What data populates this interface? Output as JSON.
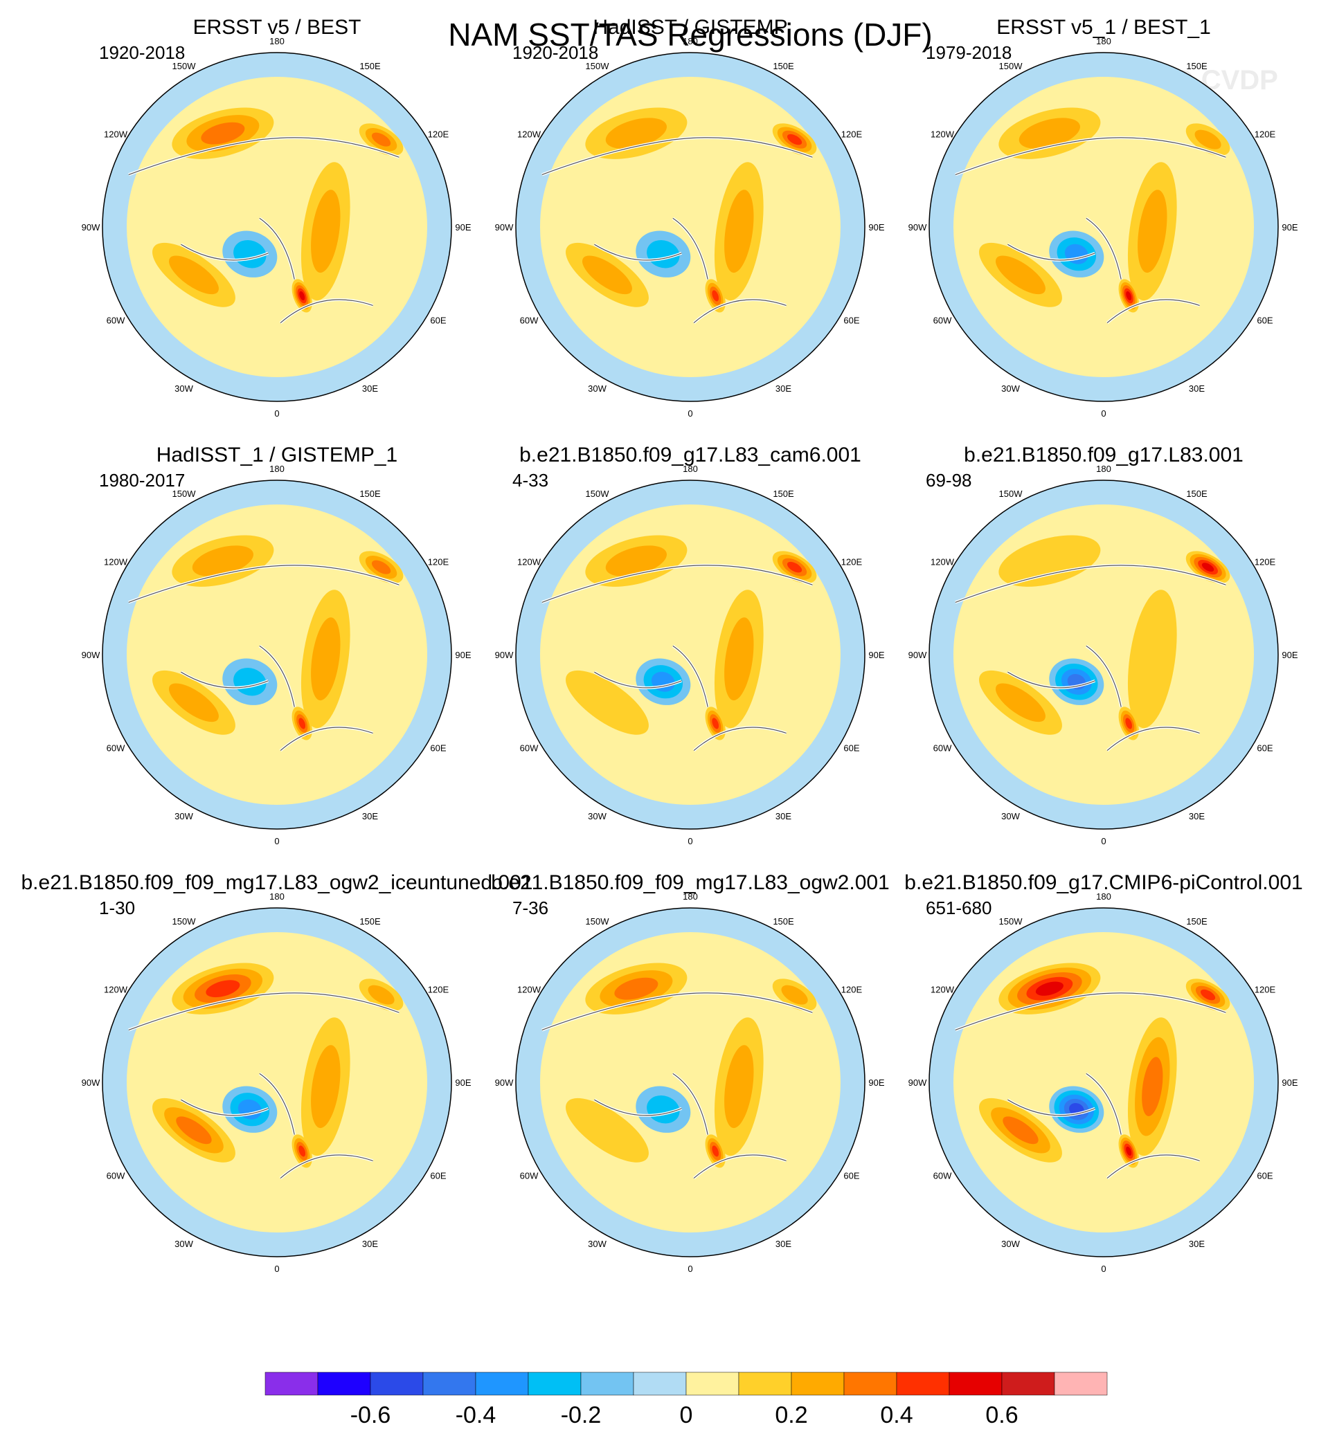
{
  "chart_data": {
    "type": "map",
    "title": "NAM SST/TAS Regressions (DJF)",
    "watermark": "© CVDP",
    "projection": "north polar stereographic",
    "longitude_labels": [
      "180",
      "150E",
      "120E",
      "90E",
      "60E",
      "30E",
      "0",
      "30W",
      "60W",
      "90W",
      "120W",
      "150W"
    ],
    "panels": [
      {
        "title": "ERSST v5 / BEST",
        "years": "1920-2018",
        "pacific_max": 0.33,
        "siberia_max": 0.38,
        "eurasia_max": 0.22,
        "atlantic_max": 0.2,
        "canada_min": -0.25,
        "scandinavia_max": 0.55
      },
      {
        "title": "HadISST / GISTEMP",
        "years": "1920-2018",
        "pacific_max": 0.28,
        "siberia_max": 0.42,
        "eurasia_max": 0.22,
        "atlantic_max": 0.28,
        "canada_min": -0.2,
        "scandinavia_max": 0.45
      },
      {
        "title": "ERSST v5_1 / BEST_1",
        "years": "1979-2018",
        "pacific_max": 0.22,
        "siberia_max": 0.2,
        "eurasia_max": 0.25,
        "atlantic_max": 0.25,
        "canada_min": -0.35,
        "scandinavia_max": 0.5
      },
      {
        "title": "HadISST_1 / GISTEMP_1",
        "years": "1980-2017",
        "pacific_max": 0.28,
        "siberia_max": 0.3,
        "eurasia_max": 0.25,
        "atlantic_max": 0.25,
        "canada_min": -0.2,
        "scandinavia_max": 0.45
      },
      {
        "title": "b.e21.B1850.f09_g17.L83_cam6.001",
        "years": "4-33",
        "pacific_max": 0.22,
        "siberia_max": 0.45,
        "eurasia_max": 0.22,
        "atlantic_max": 0.12,
        "canada_min": -0.3,
        "scandinavia_max": 0.4
      },
      {
        "title": "b.e21.B1850.f09_g17.L83.001",
        "years": "69-98",
        "pacific_max": 0.18,
        "siberia_max": 0.55,
        "eurasia_max": 0.12,
        "atlantic_max": 0.28,
        "canada_min": -0.45,
        "scandinavia_max": 0.45
      },
      {
        "title": "b.e21.B1850.f09_f09_mg17.L83_ogw2_iceuntuned.001",
        "years": "1-30",
        "pacific_max": 0.45,
        "siberia_max": 0.2,
        "eurasia_max": 0.2,
        "atlantic_max": 0.35,
        "canada_min": -0.3,
        "scandinavia_max": 0.45
      },
      {
        "title": "b.e21.B1850.f09_f09_mg17.L83_ogw2.001",
        "years": "7-36",
        "pacific_max": 0.35,
        "siberia_max": 0.2,
        "eurasia_max": 0.2,
        "atlantic_max": 0.18,
        "canada_min": -0.25,
        "scandinavia_max": 0.4
      },
      {
        "title": "b.e21.B1850.f09_g17.CMIP6-piControl.001",
        "years": "651-680",
        "pacific_max": 0.5,
        "siberia_max": 0.4,
        "eurasia_max": 0.35,
        "atlantic_max": 0.3,
        "canada_min": -0.5,
        "scandinavia_max": 0.5
      }
    ],
    "colorbar": {
      "levels": [
        -0.7,
        -0.6,
        -0.5,
        -0.4,
        -0.3,
        -0.2,
        -0.1,
        0,
        0.1,
        0.2,
        0.3,
        0.4,
        0.5,
        0.6,
        0.7
      ],
      "colors": [
        "#8a2eea",
        "#1e00ff",
        "#2b4ae8",
        "#3377ee",
        "#1f96ff",
        "#00bff5",
        "#73c4f2",
        "#b1dcf4",
        "#fff29e",
        "#ffd02a",
        "#ffaa00",
        "#ff7600",
        "#ff3000",
        "#e60000",
        "#cf1c1c",
        "#ffb4b4"
      ],
      "tick_labels": [
        "-0.6",
        "-0.4",
        "-0.2",
        "0",
        "0.2",
        "0.4",
        "0.6"
      ],
      "tick_values": [
        -0.6,
        -0.4,
        -0.2,
        0,
        0.2,
        0.4,
        0.6
      ]
    }
  }
}
